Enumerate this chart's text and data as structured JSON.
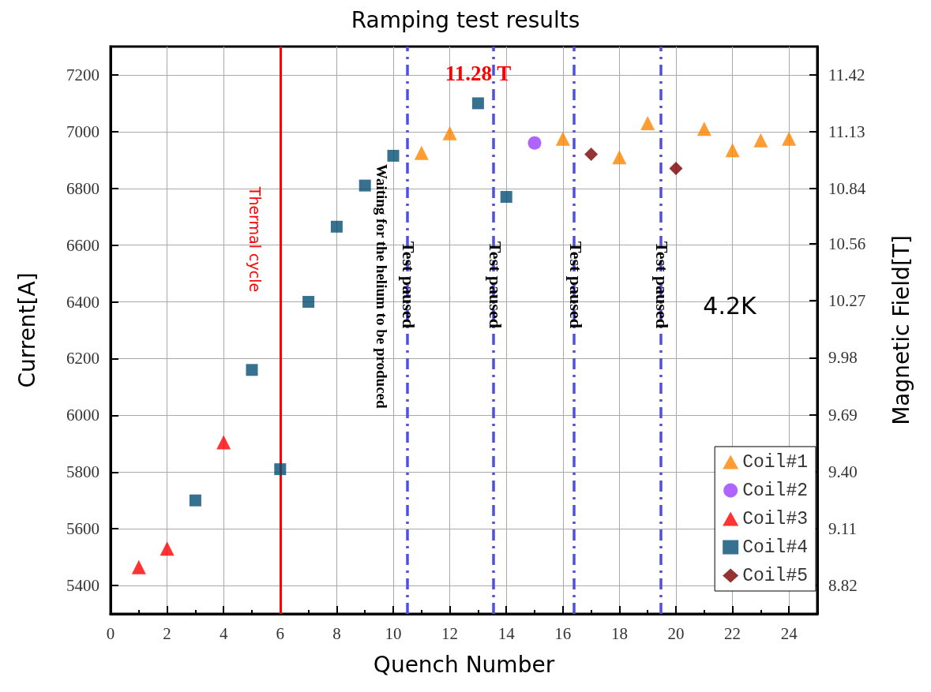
{
  "chart_data": {
    "type": "scatter",
    "title": "Ramping test results",
    "xlabel": "Quench Number",
    "ylabel": "Current[A]",
    "y2label": "Magnetic Field[T]",
    "xlim": [
      0,
      25
    ],
    "xticks": [
      0,
      2,
      4,
      6,
      8,
      10,
      12,
      14,
      16,
      18,
      20,
      22,
      24
    ],
    "ylim": [
      5300,
      7300
    ],
    "yticks": [
      5400,
      5600,
      5800,
      6000,
      6200,
      6400,
      6600,
      6800,
      7000,
      7200
    ],
    "y2lim": [
      8.676,
      11.564
    ],
    "y2ticks": [
      8.82,
      9.11,
      {
        "value": 9.4,
        "label": "9.40"
      },
      9.69,
      9.98,
      10.27,
      10.56,
      10.84,
      11.13,
      11.42
    ],
    "grid": true,
    "legend": "bottom right",
    "series": [
      {
        "name": "Coil#1",
        "color": "#ff8400",
        "marker": "triangle",
        "x": [
          11,
          12,
          16,
          18,
          19,
          21,
          22,
          23,
          24
        ],
        "values": [
          6925,
          6995,
          6975,
          6910,
          7030,
          7010,
          6935,
          6970,
          6975
        ]
      },
      {
        "name": "Coil#2",
        "color": "#9b3dff",
        "marker": "circle",
        "x": [
          15
        ],
        "values": [
          6960
        ]
      },
      {
        "name": "Coil#3",
        "color": "#ff0000",
        "marker": "triangle",
        "x": [
          1,
          2,
          4
        ],
        "values": [
          5465,
          5530,
          5905
        ]
      },
      {
        "name": "Coil#4",
        "color": "#044f73",
        "marker": "square",
        "x": [
          3,
          5,
          6,
          7,
          8,
          9,
          10,
          13,
          14
        ],
        "values": [
          5700,
          6160,
          5810,
          6400,
          6665,
          6810,
          6915,
          7100,
          6770
        ]
      },
      {
        "name": "Coil#5",
        "color": "#7a0000",
        "marker": "diamond",
        "x": [
          17,
          20
        ],
        "values": [
          6920,
          6870
        ]
      }
    ],
    "ref_lines": [
      {
        "axis": "x",
        "value": 6,
        "label": "Thermal cycle",
        "color": "#ff0000",
        "line_style": "solid"
      },
      {
        "axis": "x",
        "value": 10.5,
        "label": "Test paused",
        "color": "#5050e0",
        "line_style": "dashed"
      },
      {
        "axis": "x",
        "value": 13.55,
        "label": "Test paused",
        "color": "#5050e0",
        "line_style": "dashed"
      },
      {
        "axis": "x",
        "value": 16.4,
        "label": "Test paused",
        "color": "#5050e0",
        "line_style": "dashed"
      },
      {
        "axis": "x",
        "value": 19.45,
        "label": "Test paused",
        "color": "#5050e0",
        "line_style": "dashed"
      }
    ],
    "annotations": [
      "Waiting for the helium to be produced",
      {
        "text": "11.28 T",
        "x": 13,
        "y": 7100
      },
      "4.2K"
    ]
  }
}
